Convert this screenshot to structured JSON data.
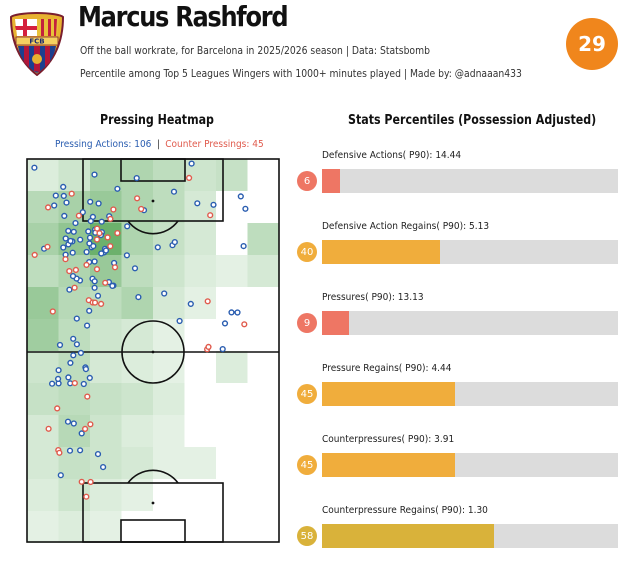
{
  "header": {
    "player_name": "Marcus Rashford",
    "subtitle_line1": "Off the ball workrate, for Barcelona in 2025/2026 season | Data: Statsbomb",
    "subtitle_line2": "Percentile among Top 5 Leagues Wingers with 1000+ minutes played | Made by: @adnaaan433",
    "overall_percentile": "29",
    "badge_color": "#f0861c",
    "crest_text": "FCB"
  },
  "heatmap": {
    "title": "Pressing Heatmap",
    "pressing_actions_label": "Pressing Actions: 106",
    "separator": "|",
    "counter_pressings_label": "Counter Pressings: 45",
    "pressing_color": "#2a5db0",
    "counter_color": "#e05b4d"
  },
  "stats_title": "Stats Percentiles (Possession Adjusted)",
  "chart_data": {
    "type": "bar",
    "orientation": "horizontal",
    "xlim": [
      0,
      100
    ],
    "categories": [
      "Defensive Actions( P90): 14.44",
      "Defensive Action Regains( P90): 5.13",
      "Pressures( P90): 13.13",
      "Pressure Regains( P90): 4.44",
      "Counterpressures( P90): 3.91",
      "Counterpressure Regains( P90): 1.30"
    ],
    "values": [
      6,
      40,
      9,
      45,
      45,
      58
    ],
    "value_labels": [
      "6",
      "40",
      "9",
      "45",
      "45",
      "58"
    ],
    "colors": [
      "#ee7664",
      "#f0ad3c",
      "#ee7664",
      "#f0ad3c",
      "#f0ad3c",
      "#d9b23a"
    ]
  }
}
